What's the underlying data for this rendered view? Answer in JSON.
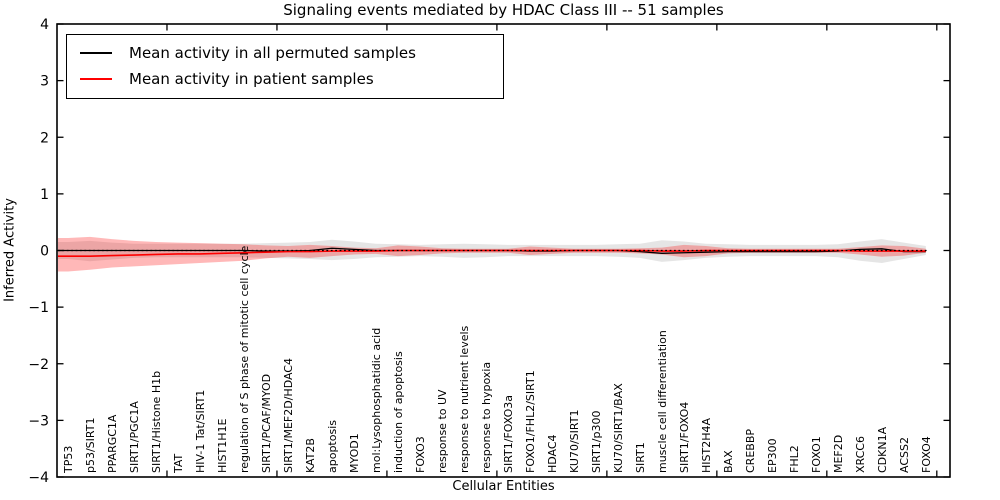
{
  "chart_data": {
    "type": "line",
    "title": "Signaling events mediated by HDAC Class III -- 51 samples",
    "xlabel": "Cellular Entities",
    "ylabel": "Inferred Activity",
    "ylim": [
      -4,
      4
    ],
    "yticks": [
      -4,
      -3,
      -2,
      -1,
      0,
      1,
      2,
      3,
      4
    ],
    "grid": false,
    "legend_position": "upper left",
    "zero_line": {
      "value": 0,
      "style": "dotted",
      "color": "#000000"
    },
    "categories": [
      "TP53",
      "p53/SIRT1",
      "PPARGC1A",
      "SIRT1/PGC1A",
      "SIRT1/Histone H1b",
      "TAT",
      "HIV-1 Tat/SIRT1",
      "HIST1H1E",
      "regulation of S phase of mitotic cell cycle",
      "SIRT1/PCAF/MYOD",
      "SIRT1/MEF2D/HDAC4",
      "KAT2B",
      "apoptosis",
      "MYOD1",
      "mol:Lysophosphatidic acid",
      "induction of apoptosis",
      "FOXO3",
      "response to UV",
      "response to nutrient levels",
      "response to hypoxia",
      "SIRT1/FOXO3a",
      "FOXO1/FHL2/SIRT1",
      "HDAC4",
      "KU70/SIRT1",
      "SIRT1/p300",
      "KU70/SIRT1/BAX",
      "SIRT1",
      "muscle cell differentiation",
      "SIRT1/FOXO4",
      "HIST2H4A",
      "BAX",
      "CREBBP",
      "EP300",
      "FHL2",
      "FOXO1",
      "MEF2D",
      "XRCC6",
      "CDKN1A",
      "ACSS2",
      "FOXO4"
    ],
    "series": [
      {
        "name": "Mean activity in all permuted samples",
        "color": "#000000",
        "band_color": "rgba(0,0,0,0.10)",
        "values": [
          0,
          0,
          0,
          0,
          0,
          0,
          0,
          0,
          0,
          -0.01,
          -0.01,
          0,
          0.04,
          0.02,
          0,
          0,
          0,
          0,
          0,
          0,
          0,
          -0.01,
          -0.01,
          0,
          0,
          0,
          -0.02,
          -0.05,
          -0.04,
          -0.03,
          -0.02,
          -0.02,
          -0.02,
          -0.02,
          -0.02,
          -0.01,
          0.02,
          0.03,
          -0.02,
          -0.02
        ],
        "band_upper": [
          0.15,
          0.17,
          0.14,
          0.12,
          0.12,
          0.12,
          0.12,
          0.12,
          0.12,
          0.13,
          0.14,
          0.15,
          0.19,
          0.16,
          0.12,
          0.11,
          0.1,
          0.11,
          0.12,
          0.11,
          0.1,
          0.1,
          0.1,
          0.1,
          0.1,
          0.11,
          0.12,
          0.18,
          0.16,
          0.12,
          0.11,
          0.1,
          0.1,
          0.1,
          0.1,
          0.11,
          0.16,
          0.2,
          0.14,
          0.08
        ],
        "band_lower": [
          -0.15,
          -0.19,
          -0.16,
          -0.13,
          -0.12,
          -0.12,
          -0.12,
          -0.12,
          -0.12,
          -0.13,
          -0.14,
          -0.15,
          -0.17,
          -0.15,
          -0.12,
          -0.11,
          -0.1,
          -0.11,
          -0.13,
          -0.12,
          -0.1,
          -0.1,
          -0.1,
          -0.1,
          -0.1,
          -0.11,
          -0.13,
          -0.2,
          -0.17,
          -0.13,
          -0.11,
          -0.1,
          -0.1,
          -0.1,
          -0.1,
          -0.12,
          -0.18,
          -0.22,
          -0.15,
          -0.08
        ]
      },
      {
        "name": "Mean activity in patient samples",
        "color": "#ff0000",
        "band_color": "rgba(255,0,0,0.28)",
        "values": [
          -0.1,
          -0.1,
          -0.09,
          -0.08,
          -0.07,
          -0.06,
          -0.06,
          -0.05,
          -0.04,
          -0.03,
          -0.02,
          -0.02,
          -0.01,
          -0.01,
          -0.01,
          0,
          0,
          0,
          0,
          0,
          0,
          0,
          0,
          0,
          0,
          0,
          0,
          -0.01,
          -0.01,
          0,
          0,
          0,
          0,
          0,
          0,
          0,
          -0.01,
          -0.01,
          -0.01,
          -0.01
        ],
        "band_upper": [
          0.22,
          0.24,
          0.2,
          0.17,
          0.15,
          0.14,
          0.13,
          0.12,
          0.11,
          0.09,
          0.08,
          0.1,
          0.08,
          0.05,
          0.04,
          0.09,
          0.07,
          0.04,
          0.03,
          0.03,
          0.03,
          0.07,
          0.05,
          0.03,
          0.03,
          0.03,
          0.04,
          0.05,
          0.1,
          0.08,
          0.04,
          0.03,
          0.03,
          0.03,
          0.03,
          0.03,
          0.06,
          0.09,
          0.08,
          0.03
        ],
        "band_lower": [
          -0.37,
          -0.34,
          -0.3,
          -0.28,
          -0.26,
          -0.24,
          -0.22,
          -0.2,
          -0.18,
          -0.14,
          -0.11,
          -0.13,
          -0.1,
          -0.07,
          -0.06,
          -0.1,
          -0.08,
          -0.05,
          -0.04,
          -0.04,
          -0.04,
          -0.08,
          -0.06,
          -0.04,
          -0.04,
          -0.04,
          -0.05,
          -0.07,
          -0.12,
          -0.1,
          -0.05,
          -0.04,
          -0.04,
          -0.04,
          -0.04,
          -0.04,
          -0.07,
          -0.11,
          -0.09,
          -0.04
        ]
      }
    ]
  }
}
